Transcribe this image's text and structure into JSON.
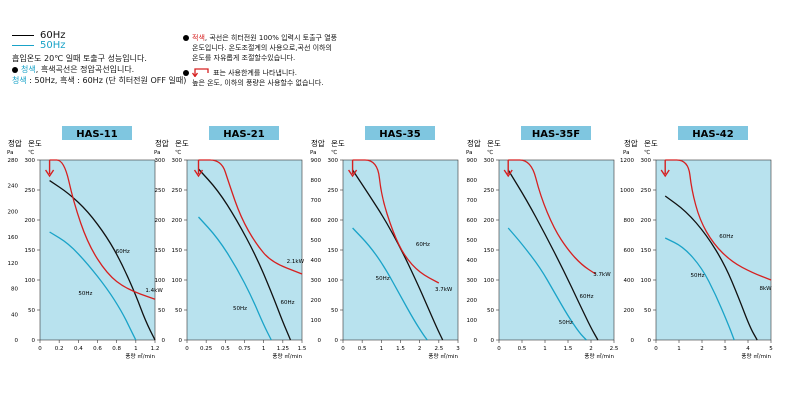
{
  "legend": {
    "line60": "60Hz",
    "line50": "50Hz",
    "note1": "흡입온도 20℃ 일때 토출구 성능입니다.",
    "note2a": "청색",
    "note2b": ", 흑색곡선은 정압곡선입니다.",
    "note3a": "청색",
    "note3b": " : 50Hz, 흑색 : 60Hz (단 히터전원 OFF 일때)"
  },
  "notes_right": {
    "red_word": "적색",
    "line1": ", 곡선은 히터전원 100% 입력시 토출구 열풍",
    "line2": "온도입니다. 온도조절계의 사용으로,곡선 이하의",
    "line3": "온도를 자유롭게 조절할수있습니다.",
    "line4": "표는 사용한계를 나타냅니다.",
    "line5": "높은 온도, 이하의 풍량은 사용할수 없습니다."
  },
  "colors": {
    "c60": "#111111",
    "c50": "#1aa3c8",
    "temp": "#d62020",
    "panel": "#b8e2ee",
    "titleBox": "#7fc6e0"
  },
  "axis_text": {
    "pressure_head": "정압",
    "temp_head": "온도",
    "pa": "Pa",
    "deg": "℃",
    "xunit": "풍량 ㎥/min"
  },
  "chart_data": [
    {
      "type": "line",
      "title": "HAS-11",
      "xlim": [
        0,
        1.2
      ],
      "xticks": [
        0,
        0.2,
        0.4,
        0.6,
        0.8,
        1.0,
        1.2
      ],
      "pa_ticks": [
        0,
        40,
        80,
        120,
        160,
        200,
        240,
        280
      ],
      "temp_ticks": [
        0,
        50,
        100,
        150,
        200,
        250,
        300
      ],
      "series": [
        {
          "name": "60Hz",
          "key": "c60",
          "x": [
            0.1,
            0.3,
            0.5,
            0.7,
            0.85,
            1.0,
            1.1,
            1.2
          ],
          "pa": [
            248,
            228,
            200,
            160,
            120,
            70,
            30,
            0
          ]
        },
        {
          "name": "50Hz",
          "key": "c50",
          "x": [
            0.1,
            0.3,
            0.5,
            0.7,
            0.85,
            0.95,
            1.0
          ],
          "pa": [
            168,
            150,
            118,
            80,
            45,
            15,
            0
          ]
        },
        {
          "name": "1.4kW",
          "key": "temp",
          "x": [
            0.1,
            0.25,
            0.35,
            0.5,
            0.7,
            0.9,
            1.2
          ],
          "temp": [
            300,
            300,
            230,
            160,
            110,
            85,
            68
          ]
        }
      ],
      "labels": [
        {
          "text": "60Hz",
          "x": 0.79,
          "pa": 135
        },
        {
          "text": "50Hz",
          "x": 0.4,
          "pa": 70
        },
        {
          "text": "1.4kW",
          "x": 1.1,
          "pa": 75
        }
      ],
      "limit": {
        "x": 0.1,
        "temp": 300
      }
    },
    {
      "type": "line",
      "title": "HAS-21",
      "xlim": [
        0,
        1.5
      ],
      "xticks": [
        0,
        0.25,
        0.5,
        0.75,
        1.0,
        1.25,
        1.5
      ],
      "pa_ticks": [
        0,
        50,
        100,
        150,
        200,
        250,
        300
      ],
      "temp_ticks": [
        0,
        50,
        100,
        150,
        200,
        250,
        300
      ],
      "series": [
        {
          "name": "60Hz",
          "key": "c60",
          "x": [
            0.15,
            0.4,
            0.65,
            0.9,
            1.1,
            1.25,
            1.35
          ],
          "pa": [
            285,
            250,
            200,
            140,
            80,
            30,
            0
          ]
        },
        {
          "name": "50Hz",
          "key": "c50",
          "x": [
            0.15,
            0.4,
            0.65,
            0.85,
            1.0,
            1.1
          ],
          "pa": [
            205,
            170,
            120,
            70,
            25,
            0
          ]
        },
        {
          "name": "2.1kW",
          "key": "temp",
          "x": [
            0.15,
            0.45,
            0.55,
            0.7,
            0.9,
            1.1,
            1.5
          ],
          "temp": [
            300,
            300,
            260,
            205,
            160,
            130,
            110
          ]
        }
      ],
      "labels": [
        {
          "text": "60Hz",
          "x": 1.22,
          "pa": 60
        },
        {
          "text": "50Hz",
          "x": 0.6,
          "pa": 50
        },
        {
          "text": "2.1kW",
          "x": 1.3,
          "pa": 128
        }
      ],
      "limit": {
        "x": 0.15,
        "temp": 300
      }
    },
    {
      "type": "line",
      "title": "HAS-35",
      "xlim": [
        0,
        3
      ],
      "xticks": [
        0,
        0.5,
        1.0,
        1.5,
        2.0,
        2.5,
        3.0
      ],
      "pa_ticks": [
        0,
        100,
        200,
        300,
        400,
        500,
        600,
        700,
        800,
        900
      ],
      "temp_ticks": [
        0,
        50,
        100,
        150,
        200,
        250,
        300
      ],
      "series": [
        {
          "name": "60Hz",
          "key": "c60",
          "x": [
            0.25,
            0.7,
            1.1,
            1.5,
            1.9,
            2.2,
            2.45,
            2.6
          ],
          "pa": [
            850,
            720,
            600,
            460,
            300,
            170,
            60,
            0
          ]
        },
        {
          "name": "50Hz",
          "key": "c50",
          "x": [
            0.25,
            0.7,
            1.1,
            1.5,
            1.85,
            2.1,
            2.2
          ],
          "pa": [
            560,
            470,
            360,
            220,
            100,
            25,
            0
          ]
        },
        {
          "name": "3.7kW",
          "key": "temp",
          "x": [
            0.25,
            0.9,
            1.0,
            1.3,
            1.6,
            2.0,
            2.5
          ],
          "temp": [
            300,
            300,
            240,
            180,
            140,
            112,
            95
          ]
        }
      ],
      "labels": [
        {
          "text": "60Hz",
          "x": 1.9,
          "pa": 470
        },
        {
          "text": "50Hz",
          "x": 0.85,
          "pa": 300
        },
        {
          "text": "3.7kW",
          "x": 2.4,
          "pa": 245
        }
      ],
      "limit": {
        "x": 0.25,
        "temp": 300
      }
    },
    {
      "type": "line",
      "title": "HAS-35F",
      "xlim": [
        0,
        2.5
      ],
      "xticks": [
        0,
        0.5,
        1.0,
        1.5,
        2.0,
        2.5
      ],
      "pa_ticks": [
        0,
        100,
        200,
        300,
        400,
        500,
        600,
        700,
        800,
        900
      ],
      "temp_ticks": [
        0,
        50,
        100,
        150,
        200,
        250,
        300
      ],
      "series": [
        {
          "name": "60Hz",
          "key": "c60",
          "x": [
            0.2,
            0.6,
            1.0,
            1.4,
            1.75,
            2.0,
            2.15
          ],
          "pa": [
            850,
            700,
            530,
            350,
            180,
            60,
            0
          ]
        },
        {
          "name": "50Hz",
          "key": "c50",
          "x": [
            0.2,
            0.5,
            0.9,
            1.2,
            1.5,
            1.75,
            1.9
          ],
          "pa": [
            560,
            480,
            360,
            240,
            120,
            35,
            0
          ]
        },
        {
          "name": "3.7kW",
          "key": "temp",
          "x": [
            0.2,
            0.7,
            0.9,
            1.2,
            1.5,
            1.8,
            2.1
          ],
          "temp": [
            300,
            300,
            240,
            185,
            150,
            125,
            110
          ]
        }
      ],
      "labels": [
        {
          "text": "60Hz",
          "x": 1.75,
          "pa": 210
        },
        {
          "text": "50Hz",
          "x": 1.3,
          "pa": 80
        },
        {
          "text": "3.7kW",
          "x": 2.05,
          "pa": 320
        }
      ],
      "limit": {
        "x": 0.2,
        "temp": 300
      }
    },
    {
      "type": "line",
      "title": "HAS-42",
      "xlim": [
        0,
        5
      ],
      "xticks": [
        0,
        1,
        2,
        3,
        4,
        5
      ],
      "pa_ticks": [
        0,
        200,
        400,
        600,
        800,
        1000,
        1200
      ],
      "temp_ticks": [
        0,
        50,
        100,
        150,
        200,
        250,
        300
      ],
      "series": [
        {
          "name": "60Hz",
          "key": "c60",
          "x": [
            0.4,
            1.3,
            2.2,
            3.0,
            3.6,
            4.1,
            4.4
          ],
          "pa": [
            960,
            860,
            700,
            500,
            280,
            80,
            0
          ]
        },
        {
          "name": "50Hz",
          "key": "c50",
          "x": [
            0.4,
            1.2,
            2.0,
            2.6,
            3.1,
            3.4
          ],
          "pa": [
            680,
            620,
            480,
            300,
            120,
            0
          ]
        },
        {
          "name": "8kW",
          "key": "temp",
          "x": [
            0.4,
            1.4,
            1.55,
            1.9,
            2.5,
            3.3,
            4.2,
            5.0
          ],
          "temp": [
            300,
            300,
            250,
            200,
            160,
            130,
            112,
            100
          ]
        }
      ],
      "labels": [
        {
          "text": "60Hz",
          "x": 2.75,
          "pa": 680
        },
        {
          "text": "50Hz",
          "x": 1.5,
          "pa": 420
        },
        {
          "text": "8kW",
          "x": 4.5,
          "pa": 335
        }
      ],
      "limit": {
        "x": 0.4,
        "temp": 300
      }
    }
  ]
}
